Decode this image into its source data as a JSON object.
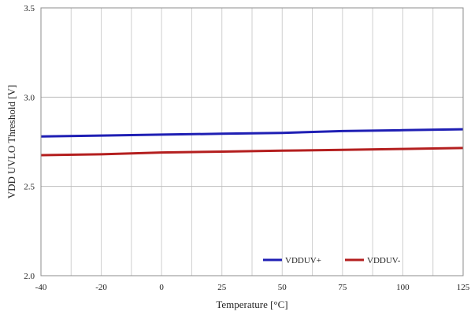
{
  "chart_data": {
    "type": "line",
    "title": "",
    "xlabel": "Temperature [°C]",
    "ylabel": "VDD UVLO Threshold [V]",
    "xlim": [
      -40,
      125
    ],
    "ylim": [
      2.0,
      3.5
    ],
    "x_tick_labels": [
      "-40",
      "-20",
      "0",
      "25",
      "50",
      "75",
      "100",
      "125"
    ],
    "y_tick_labels": [
      "2.0",
      "2.5",
      "3.0",
      "3.5"
    ],
    "grid": true,
    "legend_position": "bottom-right",
    "series": [
      {
        "name": "VDDUV+",
        "color": "#1f1fb4",
        "x": [
          -40,
          -20,
          0,
          25,
          50,
          75,
          100,
          125
        ],
        "y": [
          2.78,
          2.785,
          2.79,
          2.795,
          2.8,
          2.81,
          2.815,
          2.82
        ]
      },
      {
        "name": "VDDUV-",
        "color": "#b41f1f",
        "x": [
          -40,
          -20,
          0,
          25,
          50,
          75,
          100,
          125
        ],
        "y": [
          2.675,
          2.68,
          2.69,
          2.695,
          2.7,
          2.705,
          2.71,
          2.715
        ]
      }
    ]
  }
}
